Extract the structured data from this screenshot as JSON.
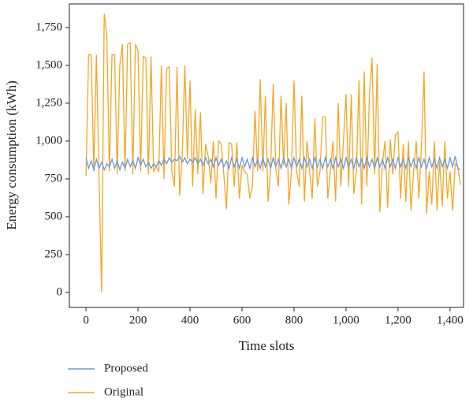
{
  "chart_data": {
    "type": "line",
    "xlabel": "Time slots",
    "ylabel": "Energy consumption (kWh)",
    "x": [
      0,
      10,
      20,
      30,
      40,
      50,
      60,
      70,
      80,
      90,
      100,
      110,
      120,
      130,
      140,
      150,
      160,
      170,
      180,
      190,
      200,
      210,
      220,
      230,
      240,
      250,
      260,
      270,
      280,
      290,
      300,
      310,
      320,
      330,
      340,
      350,
      360,
      370,
      380,
      390,
      400,
      410,
      420,
      430,
      440,
      450,
      460,
      470,
      480,
      490,
      500,
      510,
      520,
      530,
      540,
      550,
      560,
      570,
      580,
      590,
      600,
      610,
      620,
      630,
      640,
      650,
      660,
      670,
      680,
      690,
      700,
      710,
      720,
      730,
      740,
      750,
      760,
      770,
      780,
      790,
      800,
      810,
      820,
      830,
      840,
      850,
      860,
      870,
      880,
      890,
      900,
      910,
      920,
      930,
      940,
      950,
      960,
      970,
      980,
      990,
      1000,
      1010,
      1020,
      1030,
      1040,
      1050,
      1060,
      1070,
      1080,
      1090,
      1100,
      1110,
      1120,
      1130,
      1140,
      1150,
      1160,
      1170,
      1180,
      1190,
      1200,
      1210,
      1220,
      1230,
      1240,
      1250,
      1260,
      1270,
      1280,
      1290,
      1300,
      1310,
      1320,
      1330,
      1340,
      1350,
      1360,
      1370,
      1380,
      1390,
      1400,
      1410,
      1420,
      1430,
      1440
    ],
    "series": [
      {
        "name": "Original",
        "color": "#f5a623",
        "values": [
          770,
          1570,
          1570,
          800,
          1570,
          780,
          0,
          1840,
          1700,
          800,
          1570,
          1570,
          780,
          1500,
          1640,
          800,
          1640,
          1650,
          780,
          1640,
          1600,
          800,
          1560,
          1550,
          780,
          1560,
          800,
          830,
          800,
          1500,
          750,
          1480,
          1490,
          800,
          700,
          1490,
          640,
          900,
          1500,
          880,
          1400,
          700,
          1210,
          780,
          1190,
          650,
          980,
          900,
          720,
          1000,
          620,
          1000,
          980,
          780,
          550,
          990,
          980,
          700,
          990,
          620,
          840,
          800,
          780,
          620,
          700,
          1200,
          800,
          1410,
          800,
          1300,
          600,
          810,
          1380,
          820,
          700,
          1300,
          840,
          1250,
          580,
          800,
          1400,
          800,
          700,
          1300,
          600,
          1000,
          800,
          620,
          1150,
          700,
          800,
          1160,
          1160,
          620,
          800,
          1000,
          600,
          1250,
          700,
          1000,
          1310,
          700,
          1310,
          650,
          800,
          1400,
          580,
          1460,
          700,
          1300,
          1550,
          780,
          1510,
          530,
          850,
          1000,
          560,
          1010,
          780,
          1040,
          1060,
          620,
          980,
          600,
          1000,
          540,
          800,
          1000,
          620,
          960,
          1460,
          520,
          800,
          580,
          1000,
          540,
          870,
          570,
          1000,
          620,
          800,
          540,
          850,
          830,
          710
        ]
      },
      {
        "name": "Proposed",
        "color": "#6a98dc",
        "values": [
          890,
          820,
          870,
          810,
          880,
          820,
          860,
          810,
          850,
          830,
          880,
          820,
          870,
          810,
          860,
          820,
          880,
          830,
          870,
          820,
          890,
          840,
          880,
          830,
          860,
          820,
          850,
          830,
          870,
          840,
          880,
          850,
          890,
          860,
          880,
          870,
          900,
          860,
          890,
          850,
          880,
          860,
          890,
          850,
          880,
          840,
          890,
          850,
          880,
          830,
          890,
          840,
          880,
          830,
          870,
          820,
          890,
          830,
          880,
          820,
          890,
          830,
          880,
          820,
          890,
          830,
          880,
          820,
          890,
          830,
          880,
          820,
          890,
          830,
          880,
          820,
          890,
          830,
          880,
          820,
          890,
          830,
          880,
          820,
          890,
          830,
          880,
          820,
          890,
          830,
          880,
          820,
          890,
          830,
          880,
          820,
          890,
          830,
          880,
          820,
          890,
          830,
          880,
          820,
          890,
          830,
          880,
          820,
          890,
          830,
          880,
          820,
          890,
          830,
          880,
          820,
          890,
          830,
          880,
          820,
          890,
          830,
          880,
          820,
          890,
          830,
          880,
          820,
          890,
          830,
          880,
          820,
          890,
          830,
          880,
          820,
          890,
          830,
          880,
          820,
          890,
          830,
          900,
          820,
          810
        ]
      }
    ],
    "xlim": [
      -64,
      1452
    ],
    "ylim": [
      -99,
      1906
    ],
    "xticks": [
      0,
      200,
      400,
      600,
      800,
      {
        "value": 1000,
        "label": "1,000"
      },
      {
        "value": 1200,
        "label": "1,200"
      },
      {
        "value": 1400,
        "label": "1,400"
      }
    ],
    "yticks": [
      0,
      250,
      500,
      750,
      {
        "value": 1000,
        "label": "1,000"
      },
      {
        "value": 1250,
        "label": "1,250"
      },
      {
        "value": 1500,
        "label": "1,500"
      },
      {
        "value": 1750,
        "label": "1,750"
      }
    ],
    "legend_order": [
      "Proposed",
      "Original"
    ]
  }
}
